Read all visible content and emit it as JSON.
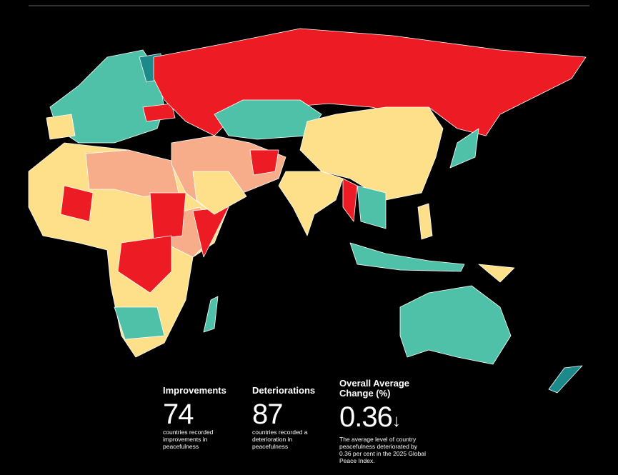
{
  "stats": [
    {
      "label": "Improvements",
      "value": 74,
      "description": "countries recorded improvements in peacefulness"
    },
    {
      "label": "Deteriorations",
      "value": 87,
      "description": "countries recorded a deterioration in peacefulness"
    },
    {
      "label": "Overall Average Change (%)",
      "value": 0.36,
      "arrow": "↓",
      "description": "The average level of country peacefulness deteriorated by 0.36 per cent in the 2025 Global Peace Index."
    }
  ]
}
